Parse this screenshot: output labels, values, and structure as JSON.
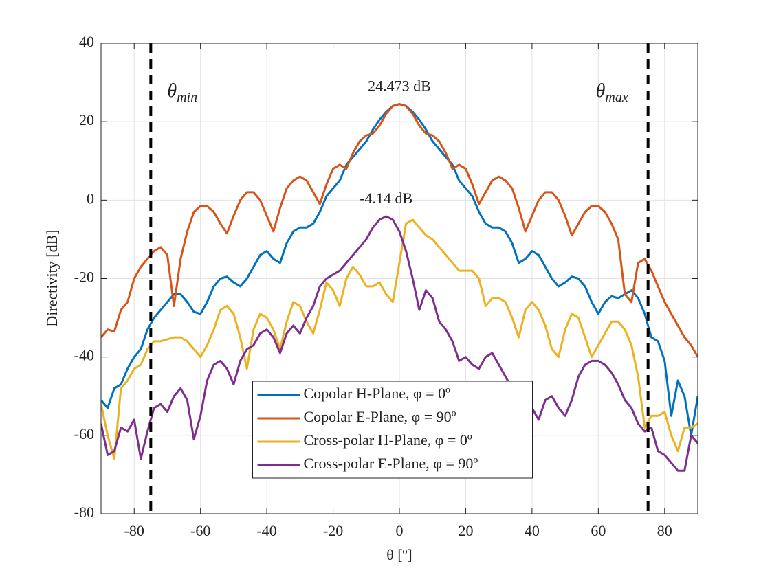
{
  "chart_data": {
    "type": "line",
    "xlabel": "θ [º]",
    "ylabel": "Directivity [dB]",
    "xlim": [
      -90,
      90
    ],
    "ylim": [
      -80,
      40
    ],
    "xticks": [
      -80,
      -60,
      -40,
      -20,
      0,
      20,
      40,
      60,
      80
    ],
    "yticks": [
      -80,
      -60,
      -40,
      -20,
      0,
      20,
      40
    ],
    "grid": true,
    "legend_location": "south",
    "x": [
      -90,
      -88,
      -86,
      -84,
      -82,
      -80,
      -78,
      -76,
      -74,
      -72,
      -70,
      -68,
      -66,
      -64,
      -62,
      -60,
      -58,
      -56,
      -54,
      -52,
      -50,
      -48,
      -46,
      -44,
      -42,
      -40,
      -38,
      -36,
      -34,
      -32,
      -30,
      -28,
      -26,
      -24,
      -22,
      -20,
      -18,
      -16,
      -14,
      -12,
      -10,
      -8,
      -6,
      -4,
      -2,
      0,
      2,
      4,
      6,
      8,
      10,
      12,
      14,
      16,
      18,
      20,
      22,
      24,
      26,
      28,
      30,
      32,
      34,
      36,
      38,
      40,
      42,
      44,
      46,
      48,
      50,
      52,
      54,
      56,
      58,
      60,
      62,
      64,
      66,
      68,
      70,
      72,
      74,
      76,
      78,
      80,
      82,
      84,
      86,
      88,
      90
    ],
    "series": [
      {
        "name": "Copolar H-Plane, φ = 0º",
        "color": "#0072BD",
        "values": [
          -51,
          -53,
          -48,
          -47,
          -43,
          -40,
          -38,
          -33,
          -30,
          -28,
          -26,
          -24,
          -24,
          -26,
          -28.5,
          -29,
          -26,
          -22,
          -20,
          -19.5,
          -21,
          -22,
          -20,
          -17,
          -14,
          -13,
          -15,
          -16,
          -11,
          -8,
          -7,
          -7,
          -6,
          -3,
          1,
          3,
          5,
          9,
          11,
          13,
          15,
          18,
          20.5,
          22.5,
          24,
          24.473,
          24,
          22.5,
          20.5,
          18,
          15,
          13,
          11,
          9,
          5,
          3,
          1,
          -3,
          -6,
          -7,
          -7,
          -8,
          -11,
          -16,
          -15,
          -13,
          -14,
          -17,
          -20,
          -22,
          -21,
          -19.5,
          -20,
          -22,
          -26,
          -29,
          -26,
          -24.5,
          -25,
          -24,
          -23,
          -25,
          -29,
          -35,
          -36,
          -41,
          -55,
          -46,
          -50,
          -60,
          -50
        ]
      },
      {
        "name": "Copolar E-Plane, φ = 90º",
        "color": "#D95319",
        "values": [
          -35,
          -33,
          -33.5,
          -28,
          -26,
          -20,
          -17,
          -15,
          -13,
          -12,
          -14,
          -27,
          -15,
          -8,
          -3,
          -1.5,
          -1.5,
          -3,
          -6,
          -8.5,
          -4,
          0,
          2,
          2,
          0,
          -4,
          -8,
          -2,
          3,
          5,
          6,
          5,
          2,
          -1,
          4,
          8,
          9,
          8,
          12,
          15,
          16.5,
          17,
          19,
          22,
          24,
          24.473,
          24,
          22,
          19,
          17,
          16.5,
          15,
          12,
          8,
          9,
          8,
          4,
          -1,
          2,
          5,
          6,
          5,
          3,
          -2,
          -8,
          -4,
          0,
          2,
          2,
          0,
          -4,
          -9,
          -6,
          -3,
          -1.5,
          -1.5,
          -3,
          -6,
          -10,
          -24,
          -26,
          -16,
          -15,
          -18,
          -22,
          -26,
          -29,
          -32,
          -35,
          -37,
          -40
        ]
      },
      {
        "name": "Cross-polar H-Plane, φ = 0º",
        "color": "#EDB120",
        "values": [
          -52,
          -60,
          -66,
          -48,
          -46,
          -43,
          -42,
          -38,
          -36,
          -36,
          -35.5,
          -35,
          -35,
          -36,
          -38,
          -40,
          -37,
          -33,
          -28,
          -27,
          -29,
          -35,
          -43,
          -33,
          -29,
          -30,
          -33,
          -38,
          -31,
          -26,
          -27,
          -31,
          -34,
          -28,
          -21,
          -23,
          -27,
          -20,
          -17,
          -19,
          -22,
          -22,
          -21,
          -24,
          -26,
          -16,
          -6,
          -5,
          -7,
          -9,
          -10,
          -12,
          -14,
          -16,
          -18,
          -18,
          -18,
          -20,
          -27,
          -25,
          -25,
          -26,
          -30,
          -35,
          -28,
          -26,
          -28,
          -32,
          -38,
          -40,
          -33,
          -29,
          -30,
          -35,
          -40,
          -37,
          -34,
          -31,
          -31,
          -33,
          -37,
          -45,
          -58,
          -55,
          -55,
          -54,
          -60,
          -64,
          -58,
          -58,
          -57
        ]
      },
      {
        "name": "Cross-polar E-Plane, φ = 90º",
        "color": "#7E2F8E",
        "values": [
          -57,
          -65,
          -64,
          -58,
          -59,
          -56,
          -66,
          -59,
          -53,
          -52,
          -54,
          -50,
          -48,
          -51,
          -61,
          -55,
          -46,
          -42,
          -41,
          -43,
          -47,
          -41,
          -38,
          -37,
          -34,
          -33,
          -35,
          -39,
          -34,
          -32,
          -34,
          -30,
          -27,
          -22,
          -20,
          -19,
          -18,
          -16,
          -14,
          -12,
          -10,
          -7,
          -5,
          -4.14,
          -5,
          -8,
          -13,
          -20,
          -28,
          -23,
          -25,
          -31,
          -33,
          -36,
          -41,
          -40,
          -42,
          -43,
          -40,
          -39,
          -42,
          -45,
          -48,
          -50,
          -52,
          -53,
          -56,
          -51,
          -50,
          -53,
          -55,
          -51,
          -45,
          -42,
          -41,
          -41,
          -42,
          -44,
          -47,
          -51,
          -53,
          -57,
          -59,
          -58,
          -64,
          -65,
          -67,
          -69,
          -69,
          -60,
          -62
        ]
      }
    ],
    "vlines": [
      {
        "x": -75,
        "symbol": "θ",
        "subscript": "min"
      },
      {
        "x": 75,
        "symbol": "θ",
        "subscript": "max"
      }
    ],
    "annotations": [
      {
        "text": "24.473 dB",
        "series": 0
      },
      {
        "text": "-4.14 dB",
        "series": 3
      }
    ]
  }
}
